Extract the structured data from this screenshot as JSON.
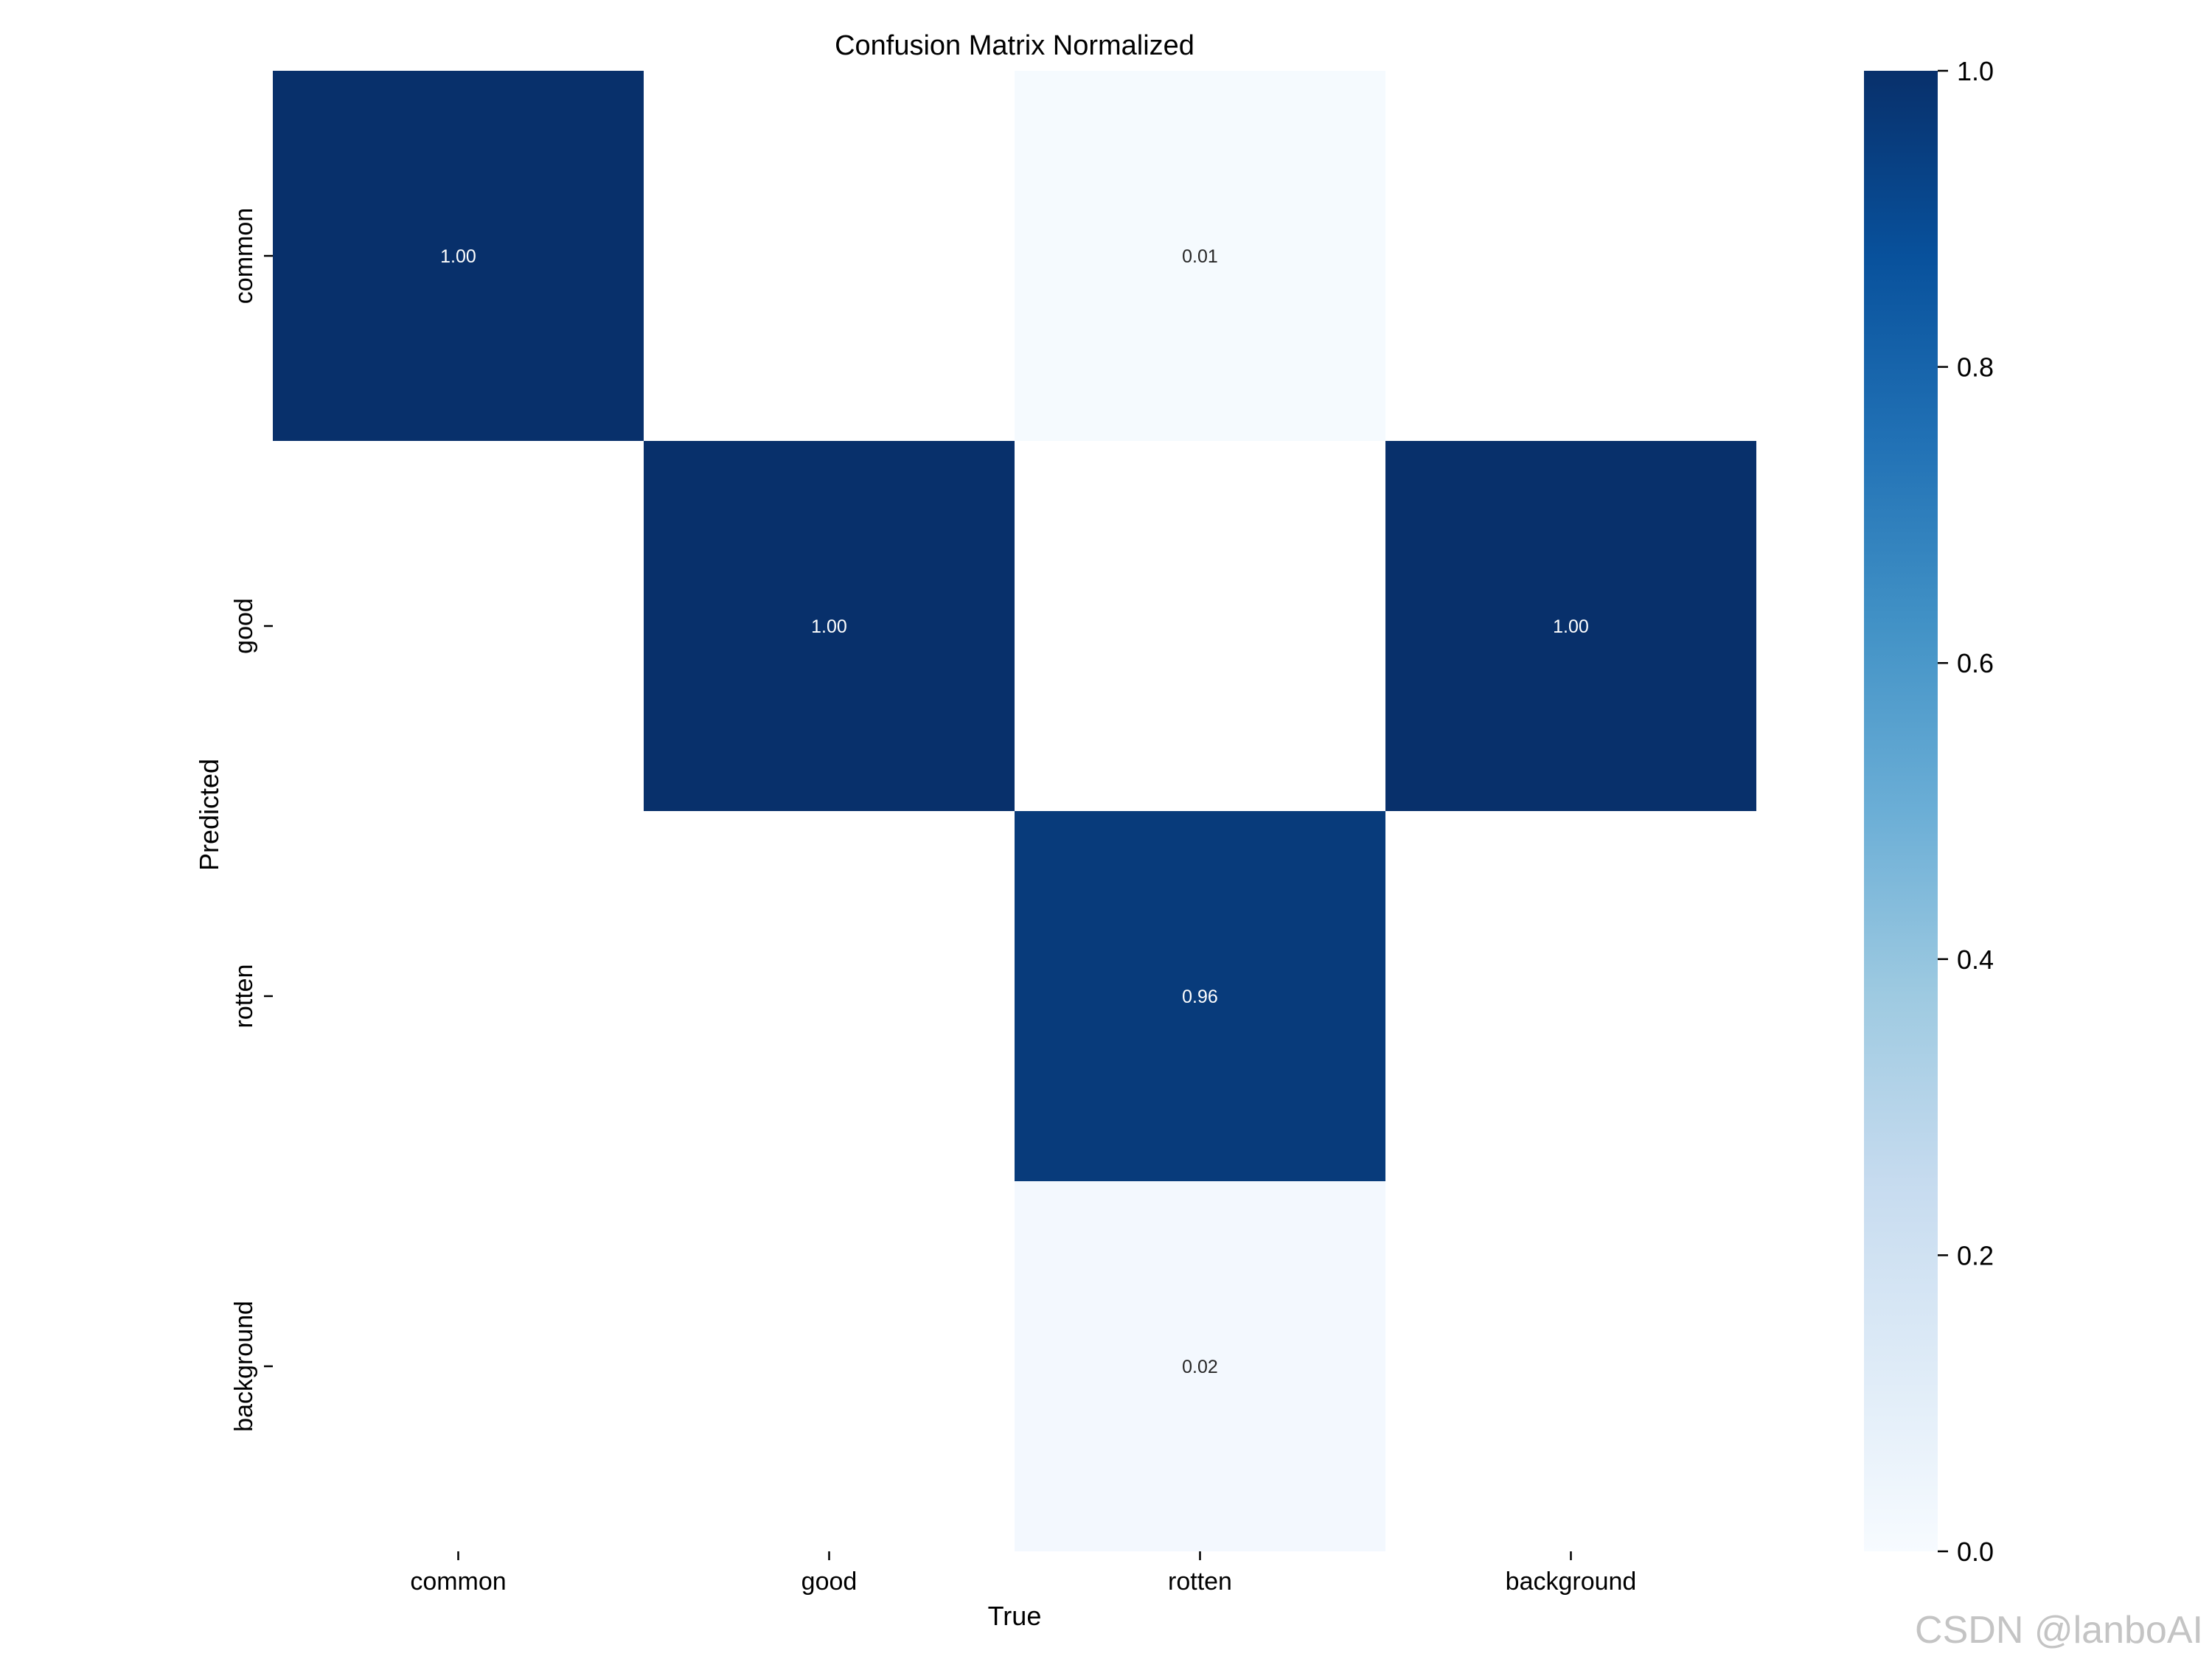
{
  "chart_data": {
    "type": "heatmap",
    "title": "Confusion Matrix Normalized",
    "xlabel": "True",
    "ylabel": "Predicted",
    "x_categories": [
      "common",
      "good",
      "rotten",
      "background"
    ],
    "y_categories": [
      "common",
      "good",
      "rotten",
      "background"
    ],
    "values": [
      [
        1.0,
        null,
        0.01,
        null
      ],
      [
        null,
        1.0,
        null,
        1.0
      ],
      [
        null,
        null,
        0.96,
        null
      ],
      [
        null,
        null,
        0.02,
        null
      ]
    ],
    "value_format": "0.00",
    "colormap": "Blues",
    "colorbar": {
      "range": [
        0.0,
        1.0
      ],
      "ticks": [
        "0.0",
        "0.2",
        "0.4",
        "0.6",
        "0.8",
        "1.0"
      ]
    },
    "grid": false
  },
  "watermark": "CSDN @lanboAI"
}
